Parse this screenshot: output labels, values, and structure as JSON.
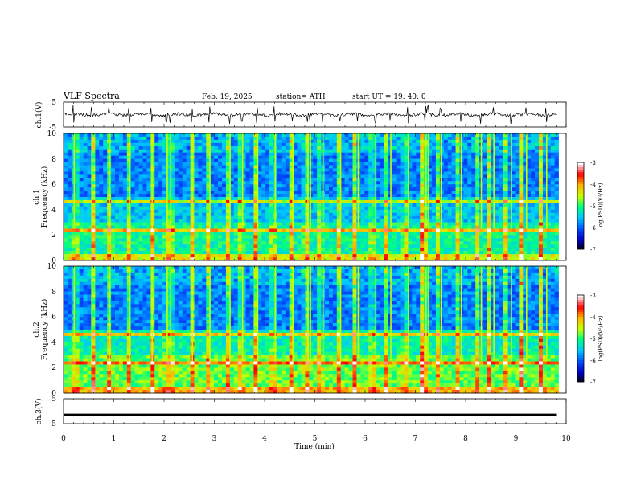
{
  "header": {
    "title": "VLF Spectra",
    "date": "Feb. 19, 2025",
    "station": "station= ATH",
    "start": "start  UT =   19: 40: 0"
  },
  "chart_data": [
    {
      "type": "line",
      "panel": "ch1-waveform",
      "ylabel": "ch.1(V)",
      "ylim": [
        -5,
        5
      ],
      "yticks": [
        "5",
        "-5"
      ],
      "description_level": 0
    },
    {
      "type": "heatmap",
      "panel": "ch1-spectrogram",
      "ylabel_line1": "ch.1",
      "ylabel_line2": "Frequency (kHz)",
      "ylim": [
        0,
        10
      ],
      "yticks": [
        "10",
        "8",
        "6",
        "4",
        "2",
        "0"
      ],
      "xlim": [
        0,
        10
      ],
      "sferic_times": [
        0.2,
        0.55,
        0.9,
        1.3,
        1.75,
        2.05,
        2.12,
        2.55,
        2.9,
        3.3,
        3.55,
        3.85,
        4.2,
        4.55,
        4.85,
        4.9,
        5.15,
        5.5,
        5.85,
        6.2,
        6.5,
        6.85,
        7.2,
        7.25,
        7.5,
        7.9,
        8.3,
        8.55,
        8.9,
        9.2,
        9.6
      ],
      "colorbar": {
        "label": "log(PSD)(V²/Hz)",
        "ticks": [
          "-3",
          "-4",
          "-5",
          "-6",
          "-7"
        ],
        "range": [
          -7,
          -3
        ]
      }
    },
    {
      "type": "heatmap",
      "panel": "ch2-spectrogram",
      "ylabel_line1": "ch.2",
      "ylabel_line2": "Frequency (kHz)",
      "ylim": [
        0,
        10
      ],
      "yticks": [
        "10",
        "8",
        "6",
        "4",
        "2",
        "0"
      ],
      "xlim": [
        0,
        10
      ],
      "colorbar": {
        "label": "log(PSD)(V²/Hz)",
        "ticks": [
          "-3",
          "-4",
          "-5",
          "-6",
          "-7"
        ],
        "range": [
          -7,
          -3
        ]
      }
    },
    {
      "type": "line",
      "panel": "ch3-waveform",
      "ylabel": "ch.3(V)",
      "ylim": [
        -5,
        5
      ],
      "yticks": [
        "5",
        "-5"
      ],
      "description_level": -1.5
    }
  ],
  "xaxis": {
    "label": "Time (min)",
    "xlim": [
      0,
      10
    ],
    "ticks": [
      "0",
      "1",
      "2",
      "3",
      "4",
      "5",
      "6",
      "7",
      "8",
      "9",
      "10"
    ]
  },
  "colors": {
    "trace": "#000000",
    "background": "#ffffff",
    "colormap": [
      "#000000",
      "#0000c8",
      "#0050ff",
      "#00c8ff",
      "#00ff80",
      "#c8ff00",
      "#ffb400",
      "#ff0000",
      "#ffffff"
    ]
  }
}
